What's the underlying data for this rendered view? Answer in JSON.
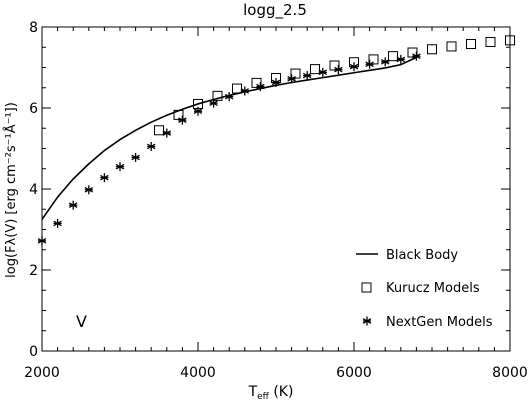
{
  "chart_data": {
    "type": "scatter",
    "title": "logg_2.5",
    "xlabel_main": "T",
    "xlabel_sub": "eff",
    "xlabel_unit": " (K)",
    "ylabel": "log(Fλ(V) [erg cm⁻²s⁻¹Å⁻¹])",
    "band_label": "V",
    "xlim": [
      2000,
      8000
    ],
    "ylim": [
      0,
      8
    ],
    "xticks": [
      2000,
      4000,
      6000,
      8000
    ],
    "yticks": [
      0,
      2,
      4,
      6,
      8
    ],
    "grid": false,
    "legend_position": "bottom-right",
    "series": [
      {
        "name": "Black Body",
        "kind": "line",
        "x": [
          2000,
          2200,
          2400,
          2600,
          2800,
          3000,
          3200,
          3400,
          3600,
          3800,
          4000,
          4200,
          4400,
          4600,
          4800,
          5000,
          5200,
          5400,
          5600,
          5800,
          6000,
          6200,
          6400,
          6600,
          6800
        ],
        "y": [
          3.25,
          3.8,
          4.25,
          4.62,
          4.95,
          5.22,
          5.45,
          5.65,
          5.82,
          5.97,
          6.1,
          6.21,
          6.31,
          6.4,
          6.48,
          6.56,
          6.63,
          6.69,
          6.75,
          6.81,
          6.87,
          6.93,
          6.99,
          7.07,
          7.25
        ]
      },
      {
        "name": "Kurucz Models",
        "kind": "square",
        "x": [
          3500,
          3750,
          4000,
          4250,
          4500,
          4750,
          5000,
          5250,
          5500,
          5750,
          6000,
          6250,
          6500,
          6750,
          7000,
          7250,
          7500,
          7750,
          8000
        ],
        "y": [
          5.45,
          5.83,
          6.1,
          6.3,
          6.48,
          6.62,
          6.74,
          6.85,
          6.96,
          7.05,
          7.13,
          7.2,
          7.28,
          7.37,
          7.45,
          7.52,
          7.58,
          7.63,
          7.67
        ]
      },
      {
        "name": "NextGen Models",
        "kind": "asterisk",
        "x": [
          2000,
          2200,
          2400,
          2600,
          2800,
          3000,
          3200,
          3400,
          3600,
          3800,
          4000,
          4200,
          4400,
          4600,
          4800,
          5000,
          5200,
          5400,
          5600,
          5800,
          6000,
          6200,
          6400,
          6600,
          6800
        ],
        "y": [
          2.72,
          3.15,
          3.6,
          3.98,
          4.28,
          4.55,
          4.78,
          5.05,
          5.38,
          5.7,
          5.92,
          6.12,
          6.28,
          6.42,
          6.53,
          6.63,
          6.72,
          6.8,
          6.88,
          6.95,
          7.02,
          7.08,
          7.14,
          7.2,
          7.28
        ]
      }
    ]
  }
}
